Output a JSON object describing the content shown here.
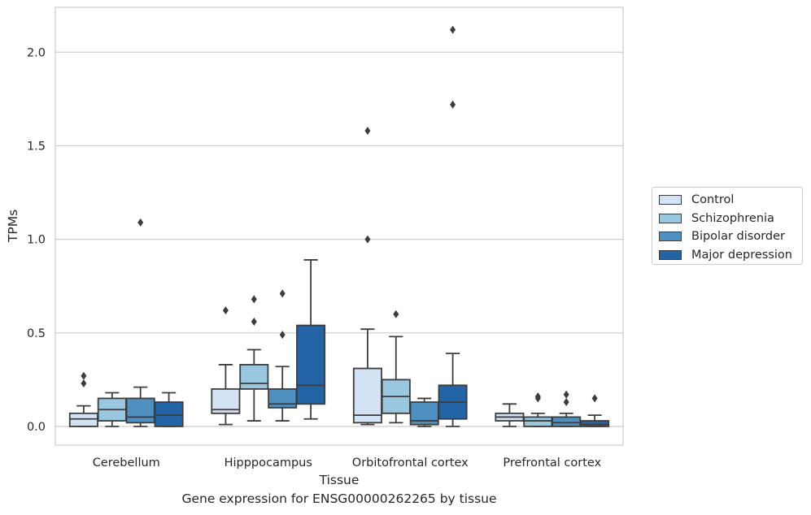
{
  "chart_data": {
    "type": "box",
    "title": "",
    "caption": "Gene expression for ENSG00000262265 by tissue",
    "xlabel": "Tissue",
    "ylabel": "TPMs",
    "ylim": [
      -0.1,
      2.24
    ],
    "yticks": [
      "0.0",
      "0.5",
      "1.0",
      "1.5",
      "2.0"
    ],
    "ytick_values": [
      0,
      0.5,
      1.0,
      1.5,
      2.0
    ],
    "grid": "horizontal",
    "legend_position": "right",
    "categories": [
      "Cerebellum",
      "Hipppocampus",
      "Orbitofrontal cortex",
      "Prefrontal cortex"
    ],
    "series": [
      {
        "name": "Control",
        "color": "#d3e3f3",
        "boxes": [
          {
            "whislo": 0.0,
            "q1": 0.0,
            "med": 0.04,
            "q3": 0.07,
            "whishi": 0.11,
            "fliers": [
              0.23,
              0.27
            ]
          },
          {
            "whislo": 0.01,
            "q1": 0.07,
            "med": 0.09,
            "q3": 0.2,
            "whishi": 0.33,
            "fliers": [
              0.62
            ]
          },
          {
            "whislo": 0.01,
            "q1": 0.02,
            "med": 0.06,
            "q3": 0.31,
            "whishi": 0.52,
            "fliers": [
              1.0,
              1.58
            ]
          },
          {
            "whislo": 0.0,
            "q1": 0.03,
            "med": 0.05,
            "q3": 0.07,
            "whishi": 0.12,
            "fliers": []
          }
        ]
      },
      {
        "name": "Schizophrenia",
        "color": "#9ac7e0",
        "boxes": [
          {
            "whislo": 0.0,
            "q1": 0.03,
            "med": 0.09,
            "q3": 0.15,
            "whishi": 0.18,
            "fliers": []
          },
          {
            "whislo": 0.03,
            "q1": 0.2,
            "med": 0.23,
            "q3": 0.33,
            "whishi": 0.41,
            "fliers": [
              0.56,
              0.68
            ]
          },
          {
            "whislo": 0.02,
            "q1": 0.07,
            "med": 0.16,
            "q3": 0.25,
            "whishi": 0.48,
            "fliers": [
              0.6
            ]
          },
          {
            "whislo": 0.0,
            "q1": 0.0,
            "med": 0.03,
            "q3": 0.05,
            "whishi": 0.07,
            "fliers": [
              0.15,
              0.16
            ]
          }
        ]
      },
      {
        "name": "Bipolar disorder",
        "color": "#4f90c1",
        "boxes": [
          {
            "whislo": 0.0,
            "q1": 0.02,
            "med": 0.05,
            "q3": 0.15,
            "whishi": 0.21,
            "fliers": [
              1.09
            ]
          },
          {
            "whislo": 0.03,
            "q1": 0.1,
            "med": 0.12,
            "q3": 0.2,
            "whishi": 0.32,
            "fliers": [
              0.49,
              0.71
            ]
          },
          {
            "whislo": 0.0,
            "q1": 0.01,
            "med": 0.03,
            "q3": 0.13,
            "whishi": 0.15,
            "fliers": []
          },
          {
            "whislo": 0.0,
            "q1": 0.0,
            "med": 0.02,
            "q3": 0.05,
            "whishi": 0.07,
            "fliers": [
              0.13,
              0.17
            ]
          }
        ]
      },
      {
        "name": "Major depression",
        "color": "#2264a5",
        "boxes": [
          {
            "whislo": 0.0,
            "q1": 0.0,
            "med": 0.06,
            "q3": 0.13,
            "whishi": 0.18,
            "fliers": []
          },
          {
            "whislo": 0.04,
            "q1": 0.12,
            "med": 0.22,
            "q3": 0.54,
            "whishi": 0.89,
            "fliers": []
          },
          {
            "whislo": 0.0,
            "q1": 0.04,
            "med": 0.13,
            "q3": 0.22,
            "whishi": 0.39,
            "fliers": [
              1.72,
              2.12
            ]
          },
          {
            "whislo": 0.0,
            "q1": 0.0,
            "med": 0.01,
            "q3": 0.03,
            "whishi": 0.06,
            "fliers": [
              0.15
            ]
          }
        ]
      }
    ]
  }
}
